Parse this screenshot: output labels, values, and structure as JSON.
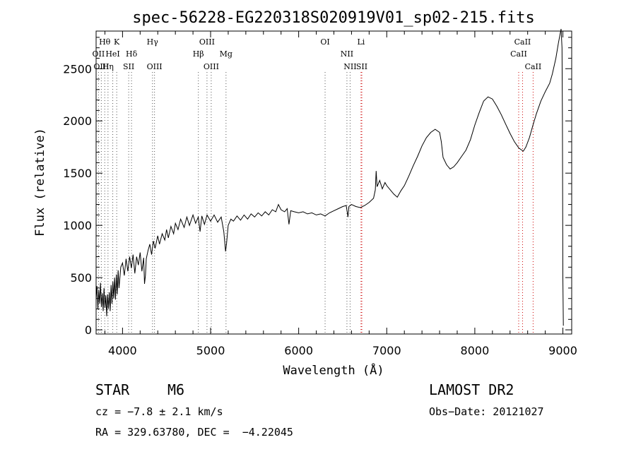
{
  "chart_data": {
    "type": "line",
    "title": "spec-56228-EG220318S020919V01_sp02-215.fits",
    "xlabel": "Wavelength (Å)",
    "ylabel": "Flux (relative)",
    "xlim": [
      3700,
      9100
    ],
    "ylim": [
      -40,
      2860
    ],
    "xticks": [
      4000,
      5000,
      6000,
      7000,
      8000,
      9000
    ],
    "yticks": [
      0,
      500,
      1000,
      1500,
      2000,
      2500
    ],
    "x_tick_labels": [
      "4000",
      "5000",
      "6000",
      "7000",
      "8000",
      "9000"
    ],
    "y_tick_labels": [
      "0",
      "500",
      "1000",
      "1500",
      "2000",
      "2500"
    ],
    "grid": false,
    "series": [
      {
        "points": [
          [
            3700,
            300
          ],
          [
            3710,
            420
          ],
          [
            3720,
            200
          ],
          [
            3730,
            380
          ],
          [
            3740,
            250
          ],
          [
            3750,
            450
          ],
          [
            3760,
            220
          ],
          [
            3770,
            350
          ],
          [
            3780,
            180
          ],
          [
            3790,
            400
          ],
          [
            3800,
            210
          ],
          [
            3810,
            330
          ],
          [
            3820,
            130
          ],
          [
            3830,
            340
          ],
          [
            3840,
            200
          ],
          [
            3850,
            360
          ],
          [
            3860,
            180
          ],
          [
            3870,
            430
          ],
          [
            3880,
            250
          ],
          [
            3890,
            460
          ],
          [
            3900,
            300
          ],
          [
            3910,
            500
          ],
          [
            3920,
            290
          ],
          [
            3930,
            530
          ],
          [
            3940,
            340
          ],
          [
            3950,
            570
          ],
          [
            3960,
            400
          ],
          [
            3970,
            500
          ],
          [
            3980,
            600
          ],
          [
            4000,
            640
          ],
          [
            4020,
            520
          ],
          [
            4040,
            680
          ],
          [
            4060,
            560
          ],
          [
            4080,
            700
          ],
          [
            4100,
            590
          ],
          [
            4120,
            720
          ],
          [
            4140,
            540
          ],
          [
            4160,
            700
          ],
          [
            4180,
            620
          ],
          [
            4200,
            740
          ],
          [
            4220,
            560
          ],
          [
            4240,
            690
          ],
          [
            4250,
            440
          ],
          [
            4260,
            520
          ],
          [
            4270,
            680
          ],
          [
            4290,
            760
          ],
          [
            4310,
            820
          ],
          [
            4330,
            720
          ],
          [
            4350,
            850
          ],
          [
            4370,
            780
          ],
          [
            4400,
            900
          ],
          [
            4420,
            820
          ],
          [
            4450,
            920
          ],
          [
            4480,
            860
          ],
          [
            4500,
            960
          ],
          [
            4520,
            880
          ],
          [
            4550,
            990
          ],
          [
            4580,
            920
          ],
          [
            4600,
            1020
          ],
          [
            4630,
            960
          ],
          [
            4660,
            1060
          ],
          [
            4700,
            980
          ],
          [
            4730,
            1080
          ],
          [
            4760,
            1000
          ],
          [
            4800,
            1100
          ],
          [
            4830,
            1020
          ],
          [
            4860,
            1080
          ],
          [
            4880,
            940
          ],
          [
            4900,
            1090
          ],
          [
            4930,
            1010
          ],
          [
            4960,
            1100
          ],
          [
            5000,
            1040
          ],
          [
            5040,
            1100
          ],
          [
            5080,
            1030
          ],
          [
            5120,
            1080
          ],
          [
            5150,
            940
          ],
          [
            5170,
            750
          ],
          [
            5180,
            820
          ],
          [
            5200,
            1000
          ],
          [
            5230,
            1060
          ],
          [
            5260,
            1040
          ],
          [
            5300,
            1090
          ],
          [
            5340,
            1050
          ],
          [
            5380,
            1100
          ],
          [
            5420,
            1060
          ],
          [
            5460,
            1110
          ],
          [
            5500,
            1080
          ],
          [
            5540,
            1120
          ],
          [
            5580,
            1090
          ],
          [
            5620,
            1130
          ],
          [
            5660,
            1100
          ],
          [
            5700,
            1150
          ],
          [
            5740,
            1130
          ],
          [
            5770,
            1200
          ],
          [
            5800,
            1150
          ],
          [
            5840,
            1130
          ],
          [
            5870,
            1160
          ],
          [
            5890,
            1010
          ],
          [
            5910,
            1140
          ],
          [
            5950,
            1130
          ],
          [
            6000,
            1120
          ],
          [
            6050,
            1130
          ],
          [
            6100,
            1110
          ],
          [
            6150,
            1120
          ],
          [
            6200,
            1100
          ],
          [
            6250,
            1110
          ],
          [
            6300,
            1090
          ],
          [
            6350,
            1120
          ],
          [
            6400,
            1140
          ],
          [
            6450,
            1160
          ],
          [
            6500,
            1180
          ],
          [
            6540,
            1190
          ],
          [
            6560,
            1080
          ],
          [
            6570,
            1180
          ],
          [
            6600,
            1200
          ],
          [
            6650,
            1180
          ],
          [
            6700,
            1170
          ],
          [
            6750,
            1190
          ],
          [
            6800,
            1220
          ],
          [
            6850,
            1260
          ],
          [
            6870,
            1340
          ],
          [
            6880,
            1520
          ],
          [
            6890,
            1370
          ],
          [
            6920,
            1430
          ],
          [
            6950,
            1350
          ],
          [
            6980,
            1410
          ],
          [
            7000,
            1380
          ],
          [
            7040,
            1340
          ],
          [
            7080,
            1300
          ],
          [
            7120,
            1270
          ],
          [
            7160,
            1330
          ],
          [
            7200,
            1380
          ],
          [
            7250,
            1470
          ],
          [
            7300,
            1570
          ],
          [
            7350,
            1660
          ],
          [
            7400,
            1760
          ],
          [
            7450,
            1840
          ],
          [
            7500,
            1890
          ],
          [
            7550,
            1920
          ],
          [
            7600,
            1890
          ],
          [
            7620,
            1800
          ],
          [
            7640,
            1650
          ],
          [
            7680,
            1580
          ],
          [
            7720,
            1540
          ],
          [
            7760,
            1560
          ],
          [
            7800,
            1600
          ],
          [
            7850,
            1660
          ],
          [
            7900,
            1720
          ],
          [
            7950,
            1820
          ],
          [
            8000,
            1960
          ],
          [
            8050,
            2080
          ],
          [
            8100,
            2190
          ],
          [
            8150,
            2230
          ],
          [
            8200,
            2210
          ],
          [
            8250,
            2140
          ],
          [
            8300,
            2060
          ],
          [
            8350,
            1970
          ],
          [
            8400,
            1880
          ],
          [
            8450,
            1800
          ],
          [
            8500,
            1740
          ],
          [
            8550,
            1710
          ],
          [
            8580,
            1750
          ],
          [
            8620,
            1840
          ],
          [
            8660,
            1960
          ],
          [
            8700,
            2070
          ],
          [
            8750,
            2190
          ],
          [
            8800,
            2280
          ],
          [
            8850,
            2360
          ],
          [
            8880,
            2450
          ],
          [
            8920,
            2600
          ],
          [
            8950,
            2750
          ],
          [
            8980,
            2880
          ],
          [
            8990,
            2700
          ],
          [
            8995,
            2000
          ],
          [
            9000,
            500
          ],
          [
            9005,
            40
          ]
        ]
      }
    ],
    "lines": [
      {
        "label": "Hθ",
        "wavelength": 3798,
        "color": "#555555",
        "row": 0
      },
      {
        "label": "K",
        "wavelength": 3934,
        "color": "#555555",
        "row": 0
      },
      {
        "label": "OII",
        "wavelength": 3727,
        "color": "#555555",
        "row": 1
      },
      {
        "label": "HeI",
        "wavelength": 3889,
        "color": "#555555",
        "row": 1
      },
      {
        "label": "Hδ",
        "wavelength": 4102,
        "color": "#555555",
        "row": 1
      },
      {
        "label": "OIII",
        "wavelength": 3759,
        "color": "#555555",
        "row": 2
      },
      {
        "label": "Hη",
        "wavelength": 3835,
        "color": "#555555",
        "row": 2
      },
      {
        "label": "SII",
        "wavelength": 4070,
        "color": "#555555",
        "row": 2
      },
      {
        "label": "Hγ",
        "wavelength": 4340,
        "color": "#555555",
        "row": 0
      },
      {
        "label": "OIII",
        "wavelength": 4363,
        "color": "#555555",
        "row": 2
      },
      {
        "label": "OIII",
        "wavelength": 4959,
        "color": "#555555",
        "row": 0
      },
      {
        "label": "Hβ",
        "wavelength": 4861,
        "color": "#555555",
        "row": 1
      },
      {
        "label": "Mg",
        "wavelength": 5175,
        "color": "#555555",
        "row": 1
      },
      {
        "label": "OIII",
        "wavelength": 5007,
        "color": "#555555",
        "row": 2
      },
      {
        "label": "OI",
        "wavelength": 6300,
        "color": "#555555",
        "row": 0
      },
      {
        "label": "Li",
        "wavelength": 6708,
        "color": "#cc0000",
        "row": 0
      },
      {
        "label": "NII",
        "wavelength": 6548,
        "color": "#555555",
        "row": 1
      },
      {
        "label": "NII",
        "wavelength": 6584,
        "color": "#555555",
        "row": 2
      },
      {
        "label": "SII",
        "wavelength": 6717,
        "color": "#cc0000",
        "row": 2
      },
      {
        "label": "CaII",
        "wavelength": 8542,
        "color": "#cc0000",
        "row": 0
      },
      {
        "label": "CaII",
        "wavelength": 8498,
        "color": "#cc0000",
        "row": 1
      },
      {
        "label": "CaII",
        "wavelength": 8662,
        "color": "#cc0000",
        "row": 2
      }
    ]
  },
  "info": {
    "class": "STAR",
    "subclass": "M6",
    "cz": "cz = −7.8 ± 2.1 km/s",
    "coords": "RA = 329.63780, DEC =  −4.22045",
    "survey": "LAMOST DR2",
    "obsdate": "Obs−Date: 20121027"
  }
}
